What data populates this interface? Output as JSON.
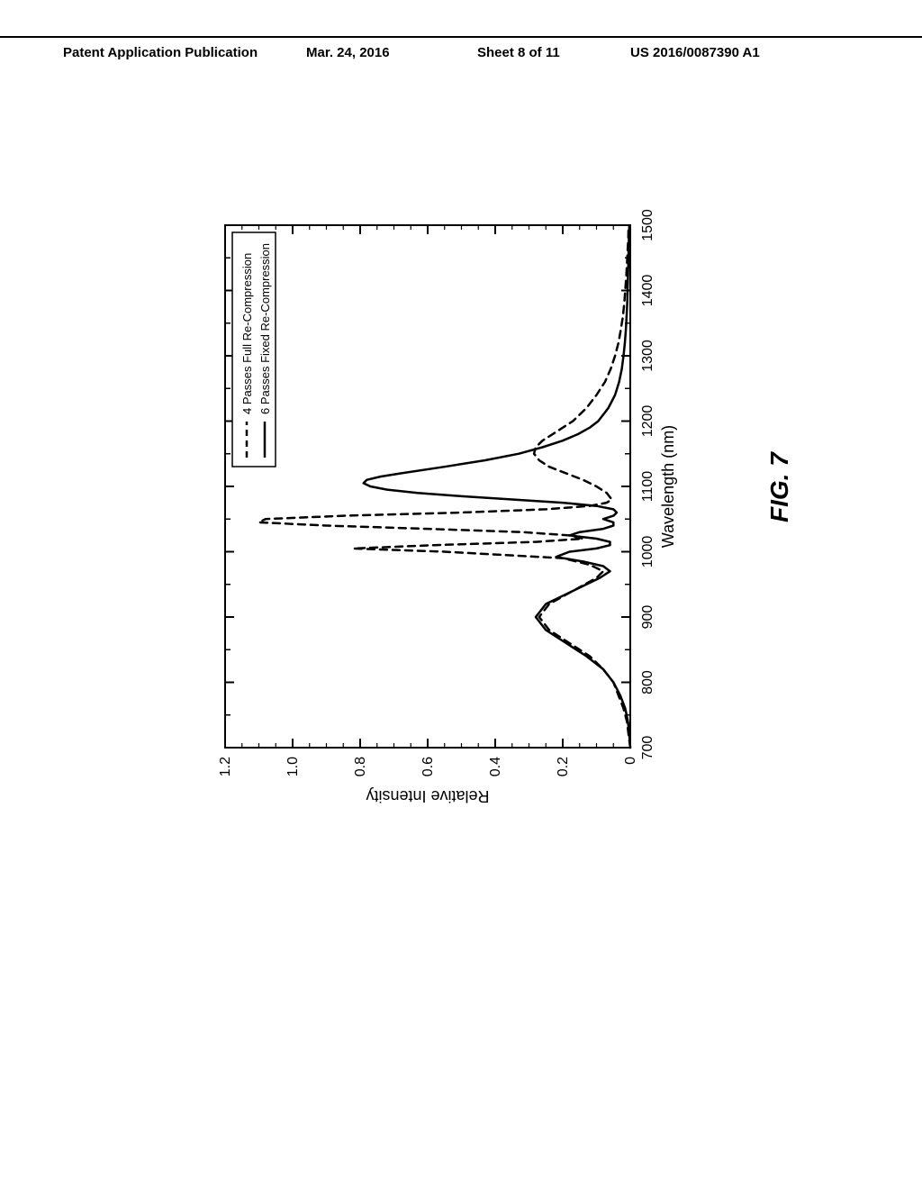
{
  "header": {
    "publication": "Patent Application Publication",
    "date": "Mar. 24, 2016",
    "sheet_label": "Sheet 8 of 11",
    "doc_number": "US 2016/0087390 A1"
  },
  "figure": {
    "label": "FIG. 7",
    "type": "line",
    "background_color": "#ffffff",
    "border_color": "#000000",
    "axis_color": "#000000",
    "y_axis": {
      "label": "Relative Intensity",
      "label_fontsize": 18,
      "min": 0,
      "max": 1.2,
      "ticks": [
        0,
        0.2,
        0.4,
        0.6,
        0.8,
        1.0,
        1.2
      ],
      "tick_labels": [
        "0",
        "0.2",
        "0.4",
        "0.6",
        "0.8",
        "1.0",
        "1.2"
      ]
    },
    "x_axis": {
      "label": "Wavelength (nm)",
      "label_fontsize": 18,
      "min": 700,
      "max": 1500,
      "ticks": [
        700,
        800,
        900,
        1000,
        1100,
        1200,
        1300,
        1400,
        1500
      ],
      "tick_labels": [
        "700",
        "800",
        "900",
        "1000",
        "1100",
        "1200",
        "1300",
        "1400",
        "1500"
      ]
    },
    "legend": {
      "border_color": "#000000",
      "entries": [
        {
          "label": "4 Passes Full Re-Compression",
          "style": "dashed",
          "color": "#000000"
        },
        {
          "label": "6 Passes Fixed Re-Compression",
          "style": "solid",
          "color": "#000000"
        }
      ]
    },
    "series": [
      {
        "name": "4 Passes Full Re-Compression",
        "style": "dashed",
        "color": "#000000",
        "stroke_width": 2.5,
        "dash_pattern": "8 6",
        "points": [
          [
            700,
            0.0
          ],
          [
            720,
            0.005
          ],
          [
            740,
            0.01
          ],
          [
            760,
            0.02
          ],
          [
            780,
            0.035
          ],
          [
            800,
            0.05
          ],
          [
            820,
            0.08
          ],
          [
            840,
            0.12
          ],
          [
            860,
            0.18
          ],
          [
            880,
            0.24
          ],
          [
            900,
            0.27
          ],
          [
            920,
            0.24
          ],
          [
            940,
            0.17
          ],
          [
            960,
            0.1
          ],
          [
            970,
            0.08
          ],
          [
            980,
            0.12
          ],
          [
            990,
            0.2
          ],
          [
            1000,
            0.55
          ],
          [
            1005,
            0.82
          ],
          [
            1010,
            0.58
          ],
          [
            1015,
            0.28
          ],
          [
            1020,
            0.14
          ],
          [
            1025,
            0.18
          ],
          [
            1030,
            0.32
          ],
          [
            1035,
            0.6
          ],
          [
            1040,
            0.9
          ],
          [
            1045,
            1.1
          ],
          [
            1050,
            1.08
          ],
          [
            1055,
            0.85
          ],
          [
            1060,
            0.5
          ],
          [
            1065,
            0.25
          ],
          [
            1070,
            0.12
          ],
          [
            1075,
            0.07
          ],
          [
            1080,
            0.055
          ],
          [
            1090,
            0.07
          ],
          [
            1100,
            0.1
          ],
          [
            1110,
            0.14
          ],
          [
            1120,
            0.19
          ],
          [
            1130,
            0.24
          ],
          [
            1140,
            0.27
          ],
          [
            1150,
            0.285
          ],
          [
            1160,
            0.28
          ],
          [
            1170,
            0.26
          ],
          [
            1180,
            0.23
          ],
          [
            1200,
            0.17
          ],
          [
            1220,
            0.13
          ],
          [
            1240,
            0.1
          ],
          [
            1260,
            0.075
          ],
          [
            1280,
            0.058
          ],
          [
            1300,
            0.045
          ],
          [
            1320,
            0.035
          ],
          [
            1340,
            0.028
          ],
          [
            1360,
            0.022
          ],
          [
            1380,
            0.018
          ],
          [
            1400,
            0.015
          ],
          [
            1420,
            0.012
          ],
          [
            1440,
            0.01
          ],
          [
            1460,
            0.008
          ],
          [
            1480,
            0.006
          ],
          [
            1500,
            0.005
          ]
        ]
      },
      {
        "name": "6 Passes Fixed Re-Compression",
        "style": "solid",
        "color": "#000000",
        "stroke_width": 2.5,
        "points": [
          [
            700,
            0.0
          ],
          [
            720,
            0.003
          ],
          [
            740,
            0.007
          ],
          [
            760,
            0.015
          ],
          [
            780,
            0.03
          ],
          [
            800,
            0.05
          ],
          [
            820,
            0.08
          ],
          [
            840,
            0.13
          ],
          [
            860,
            0.19
          ],
          [
            880,
            0.25
          ],
          [
            900,
            0.28
          ],
          [
            920,
            0.25
          ],
          [
            940,
            0.17
          ],
          [
            960,
            0.09
          ],
          [
            970,
            0.06
          ],
          [
            978,
            0.08
          ],
          [
            985,
            0.14
          ],
          [
            992,
            0.22
          ],
          [
            1000,
            0.18
          ],
          [
            1005,
            0.1
          ],
          [
            1010,
            0.06
          ],
          [
            1015,
            0.06
          ],
          [
            1020,
            0.1
          ],
          [
            1025,
            0.18
          ],
          [
            1030,
            0.15
          ],
          [
            1035,
            0.08
          ],
          [
            1040,
            0.05
          ],
          [
            1045,
            0.05
          ],
          [
            1050,
            0.08
          ],
          [
            1055,
            0.05
          ],
          [
            1060,
            0.04
          ],
          [
            1065,
            0.05
          ],
          [
            1070,
            0.1
          ],
          [
            1075,
            0.2
          ],
          [
            1080,
            0.35
          ],
          [
            1085,
            0.5
          ],
          [
            1090,
            0.63
          ],
          [
            1095,
            0.72
          ],
          [
            1100,
            0.77
          ],
          [
            1105,
            0.79
          ],
          [
            1110,
            0.78
          ],
          [
            1115,
            0.74
          ],
          [
            1120,
            0.68
          ],
          [
            1130,
            0.55
          ],
          [
            1140,
            0.43
          ],
          [
            1150,
            0.33
          ],
          [
            1160,
            0.26
          ],
          [
            1170,
            0.2
          ],
          [
            1180,
            0.155
          ],
          [
            1190,
            0.12
          ],
          [
            1200,
            0.095
          ],
          [
            1220,
            0.065
          ],
          [
            1240,
            0.045
          ],
          [
            1260,
            0.033
          ],
          [
            1280,
            0.025
          ],
          [
            1300,
            0.02
          ],
          [
            1320,
            0.016
          ],
          [
            1340,
            0.013
          ],
          [
            1360,
            0.011
          ],
          [
            1380,
            0.009
          ],
          [
            1400,
            0.008
          ],
          [
            1420,
            0.007
          ],
          [
            1440,
            0.006
          ],
          [
            1460,
            0.005
          ],
          [
            1480,
            0.004
          ],
          [
            1500,
            0.003
          ]
        ]
      }
    ]
  }
}
